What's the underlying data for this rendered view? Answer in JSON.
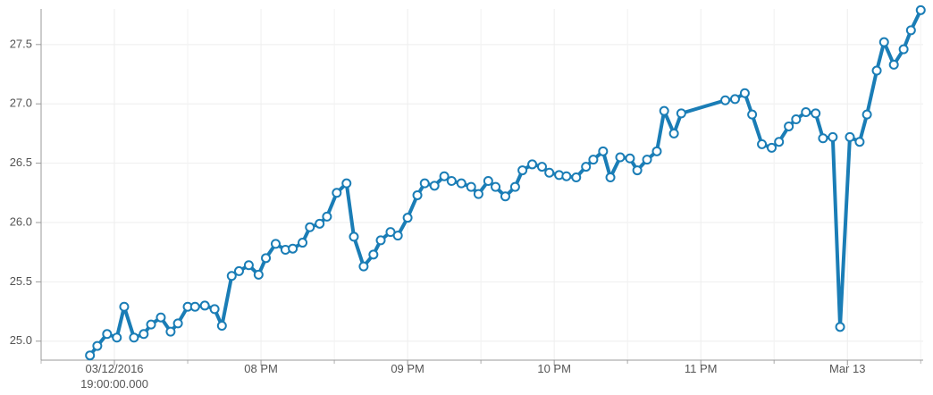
{
  "chart_data": {
    "type": "line",
    "x": [
      "2016-03-12T18:50",
      "2016-03-12T18:53",
      "2016-03-12T18:57",
      "2016-03-12T19:01",
      "2016-03-12T19:04",
      "2016-03-12T19:08",
      "2016-03-12T19:12",
      "2016-03-12T19:15",
      "2016-03-12T19:19",
      "2016-03-12T19:23",
      "2016-03-12T19:26",
      "2016-03-12T19:30",
      "2016-03-12T19:33",
      "2016-03-12T19:37",
      "2016-03-12T19:41",
      "2016-03-12T19:44",
      "2016-03-12T19:48",
      "2016-03-12T19:51",
      "2016-03-12T19:55",
      "2016-03-12T19:59",
      "2016-03-12T20:02",
      "2016-03-12T20:06",
      "2016-03-12T20:10",
      "2016-03-12T20:13",
      "2016-03-12T20:17",
      "2016-03-12T20:20",
      "2016-03-12T20:24",
      "2016-03-12T20:27",
      "2016-03-12T20:31",
      "2016-03-12T20:35",
      "2016-03-12T20:38",
      "2016-03-12T20:42",
      "2016-03-12T20:46",
      "2016-03-12T20:49",
      "2016-03-12T20:53",
      "2016-03-12T20:56",
      "2016-03-12T21:00",
      "2016-03-12T21:04",
      "2016-03-12T21:07",
      "2016-03-12T21:11",
      "2016-03-12T21:15",
      "2016-03-12T21:18",
      "2016-03-12T21:22",
      "2016-03-12T21:26",
      "2016-03-12T21:29",
      "2016-03-12T21:33",
      "2016-03-12T21:36",
      "2016-03-12T21:40",
      "2016-03-12T21:44",
      "2016-03-12T21:47",
      "2016-03-12T21:51",
      "2016-03-12T21:55",
      "2016-03-12T21:58",
      "2016-03-12T22:02",
      "2016-03-12T22:05",
      "2016-03-12T22:09",
      "2016-03-12T22:13",
      "2016-03-12T22:16",
      "2016-03-12T22:20",
      "2016-03-12T22:23",
      "2016-03-12T22:27",
      "2016-03-12T22:31",
      "2016-03-12T22:34",
      "2016-03-12T22:38",
      "2016-03-12T22:42",
      "2016-03-12T22:45",
      "2016-03-12T22:49",
      "2016-03-12T22:52",
      "2016-03-12T23:10",
      "2016-03-12T23:14",
      "2016-03-12T23:18",
      "2016-03-12T23:21",
      "2016-03-12T23:25",
      "2016-03-12T23:29",
      "2016-03-12T23:32",
      "2016-03-12T23:36",
      "2016-03-12T23:39",
      "2016-03-12T23:43",
      "2016-03-12T23:47",
      "2016-03-12T23:50",
      "2016-03-12T23:54",
      "2016-03-12T23:57",
      "2016-03-13T00:01",
      "2016-03-13T00:05",
      "2016-03-13T00:08",
      "2016-03-13T00:12",
      "2016-03-13T00:15",
      "2016-03-13T00:19",
      "2016-03-13T00:23",
      "2016-03-13T00:26",
      "2016-03-13T00:30"
    ],
    "series": [
      {
        "color": "#1a7db6",
        "values": [
          24.88,
          24.96,
          25.06,
          25.03,
          25.29,
          25.03,
          25.06,
          25.14,
          25.2,
          25.08,
          25.15,
          25.29,
          25.29,
          25.3,
          25.27,
          25.13,
          25.55,
          25.59,
          25.64,
          25.56,
          25.7,
          25.82,
          25.77,
          25.78,
          25.83,
          25.96,
          25.99,
          26.05,
          26.25,
          26.33,
          25.88,
          25.63,
          25.73,
          25.85,
          25.92,
          25.89,
          26.04,
          26.23,
          26.33,
          26.31,
          26.39,
          26.35,
          26.33,
          26.3,
          26.24,
          26.35,
          26.3,
          26.22,
          26.3,
          26.44,
          26.49,
          26.47,
          26.42,
          26.4,
          26.39,
          26.38,
          26.47,
          26.53,
          26.6,
          26.38,
          26.55,
          26.54,
          26.44,
          26.53,
          26.6,
          26.94,
          26.75,
          26.92,
          27.03,
          27.04,
          27.09,
          26.91,
          26.66,
          26.63,
          26.68,
          26.81,
          26.87,
          26.93,
          26.92,
          26.71,
          26.72,
          25.12,
          26.72,
          26.68,
          26.91,
          27.28,
          27.52,
          27.33,
          27.46,
          27.62,
          27.79
        ]
      }
    ],
    "xlim": [
      "2016-03-12T18:30",
      "2016-03-13T00:31"
    ],
    "xticks": [
      {
        "value": "2016-03-12T19:00",
        "label": "03/12/2016\n19:00:00.000"
      },
      {
        "value": "2016-03-12T20:00",
        "label": "08 PM"
      },
      {
        "value": "2016-03-12T21:00",
        "label": "09 PM"
      },
      {
        "value": "2016-03-12T22:00",
        "label": "10 PM"
      },
      {
        "value": "2016-03-12T23:00",
        "label": "11 PM"
      },
      {
        "value": "2016-03-13T00:00",
        "label": "Mar 13"
      }
    ],
    "ylim": [
      24.84,
      27.8
    ],
    "yticks": [
      {
        "value": 25,
        "label": "25.0"
      },
      {
        "value": 25.5,
        "label": "25.5"
      },
      {
        "value": 26,
        "label": "26.0"
      },
      {
        "value": 26.5,
        "label": "26.5"
      },
      {
        "value": 27,
        "label": "27.0"
      },
      {
        "value": 27.5,
        "label": "27.5"
      }
    ],
    "grid": true
  }
}
